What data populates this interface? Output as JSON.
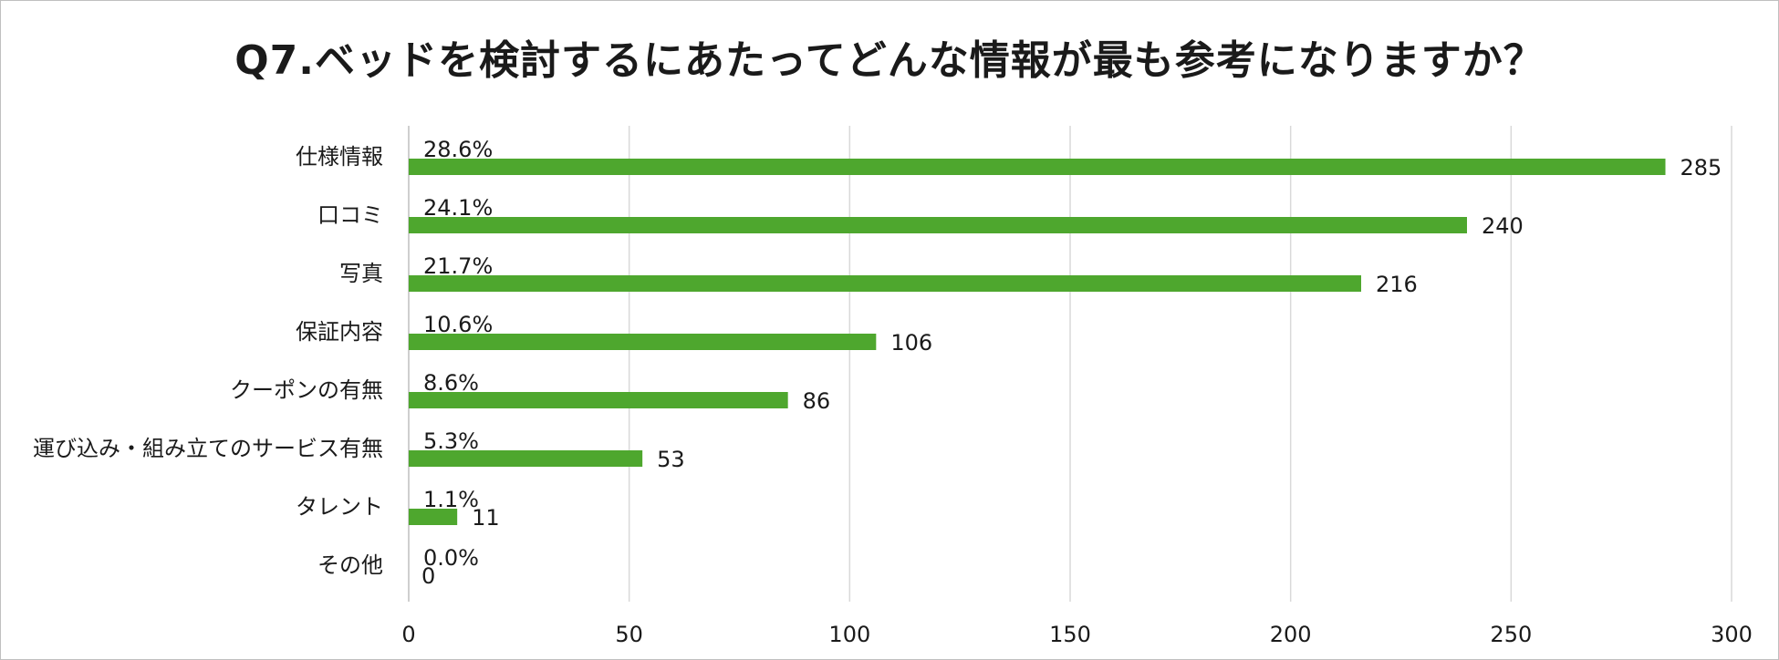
{
  "chart_data": {
    "type": "bar",
    "orientation": "horizontal",
    "title": "Q7.ベッドを検討するにあたってどんな情報が最も参考になりますか？",
    "categories": [
      "仕様情報",
      "口コミ",
      "写真",
      "保証内容",
      "クーポンの有無",
      "運び込み・組み立てのサービス有無",
      "タレント",
      "その他"
    ],
    "values": [
      285,
      240,
      216,
      106,
      86,
      53,
      11,
      0
    ],
    "percent_labels": [
      "28.6%",
      "24.1%",
      "21.7%",
      "10.6%",
      "8.6%",
      "5.3%",
      "1.1%",
      "0.0%"
    ],
    "value_labels": [
      "285",
      "240",
      "216",
      "106",
      "86",
      "53",
      "11",
      "0"
    ],
    "xlim": [
      0,
      300
    ],
    "x_ticks": [
      "0",
      "50",
      "100",
      "150",
      "200",
      "250",
      "300"
    ],
    "grid": true,
    "legend": "none",
    "colors": {
      "bar": "#4ea72e",
      "grid": "#d9d9d9",
      "text": "#1a1a1a"
    }
  }
}
